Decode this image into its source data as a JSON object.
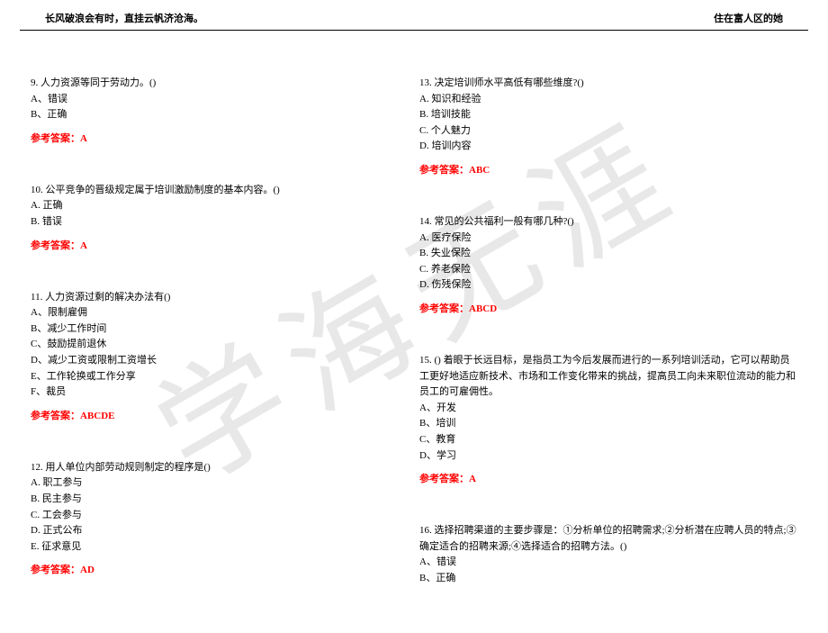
{
  "watermark": "学海无涯",
  "header": {
    "left": "长风破浪会有时，直挂云帆济沧海。",
    "right": "住在富人区的她"
  },
  "colors": {
    "answer": "#ff0000",
    "text": "#000000",
    "watermark": "#e8e8e8",
    "divider": "#000000"
  },
  "left_column": [
    {
      "q": "9. 人力资源等同于劳动力。()",
      "options": [
        "A、错误",
        "B、正确"
      ],
      "answer": "参考答案：A"
    },
    {
      "q": "10. 公平竞争的晋级规定属于培训激励制度的基本内容。()",
      "options": [
        "A. 正确",
        "B. 错误"
      ],
      "answer": "参考答案：A"
    },
    {
      "q": "11. 人力资源过剩的解决办法有()",
      "options": [
        "A、限制雇佣",
        "B、减少工作时间",
        "C、鼓励提前退休",
        "D、减少工资或限制工资增长",
        "E、工作轮换或工作分享",
        "F、裁员"
      ],
      "answer": "参考答案：ABCDE"
    },
    {
      "q": "12. 用人单位内部劳动规则制定的程序是()",
      "options": [
        "A. 职工参与",
        "B. 民主参与",
        "C. 工会参与",
        "D. 正式公布",
        "E. 征求意见"
      ],
      "answer": "参考答案：AD"
    }
  ],
  "right_column": [
    {
      "q": "13. 决定培训师水平高低有哪些维度?()",
      "options": [
        "A. 知识和经验",
        "B. 培训技能",
        "C. 个人魅力",
        "D. 培训内容"
      ],
      "answer": "参考答案：ABC"
    },
    {
      "q": "14. 常见的公共福利一般有哪几种?()",
      "options": [
        "A. 医疗保险",
        "B. 失业保险",
        "C. 养老保险",
        "D. 伤残保险"
      ],
      "answer": "参考答案：ABCD"
    },
    {
      "q": "15. () 着眼于长远目标，是指员工为今后发展而进行的一系列培训活动，它可以帮助员工更好地适应新技术、市场和工作变化带来的挑战，提高员工向未来职位流动的能力和员工的可雇佣性。",
      "options": [
        "A、开发",
        "B、培训",
        "C、教育",
        "D、学习"
      ],
      "answer": "参考答案：A"
    },
    {
      "q": "16. 选择招聘渠道的主要步骤是：①分析单位的招聘需求;②分析潜在应聘人员的特点;③确定适合的招聘来源;④选择适合的招聘方法。()",
      "options": [
        "A、错误",
        "B、正确"
      ],
      "answer": ""
    }
  ]
}
